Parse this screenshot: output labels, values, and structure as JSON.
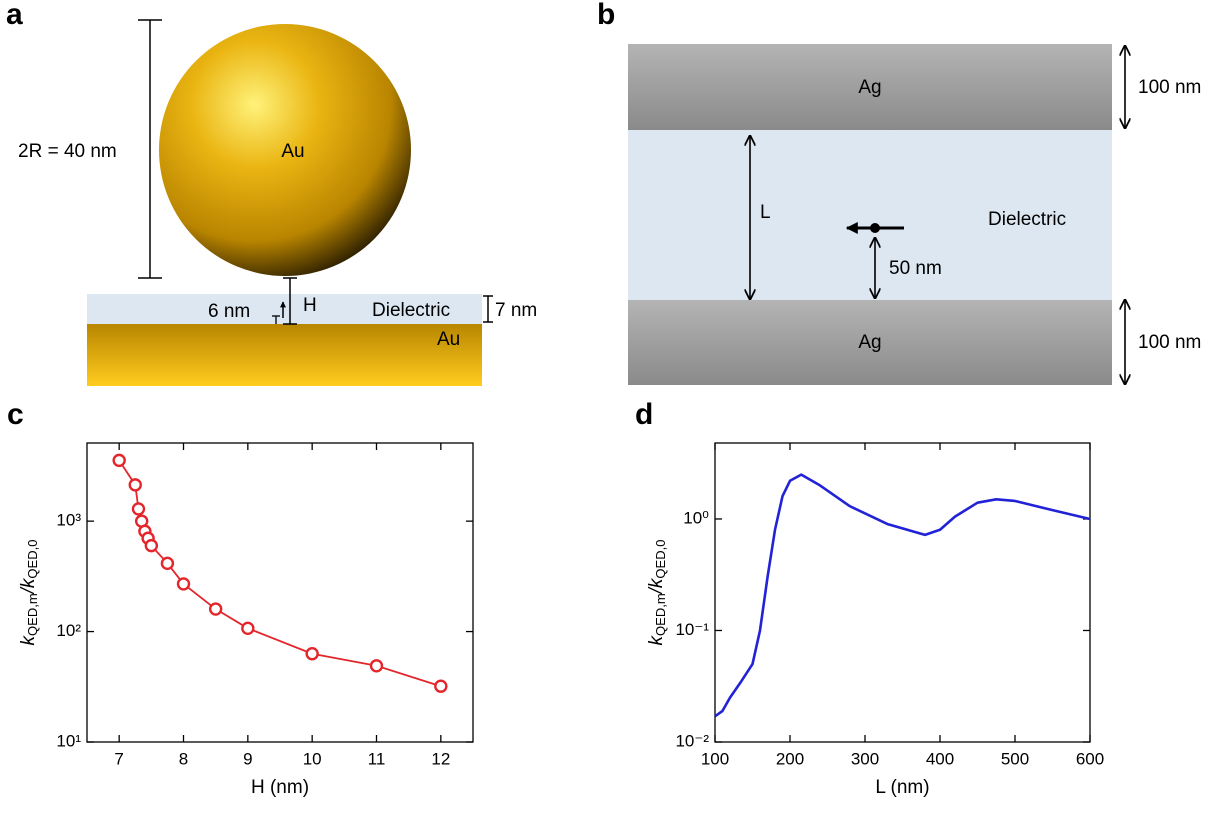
{
  "panel_a": {
    "letter": "a",
    "diameter_label": "2R = 40 nm",
    "sphere_label": "Au",
    "gap_label": "6 nm",
    "height_label": "H",
    "layer_label": "Dielectric",
    "layer_thickness_label": "7 nm",
    "substrate_label": "Au"
  },
  "panel_b": {
    "letter": "b",
    "top_label": "Ag",
    "top_thickness_label": "100 nm",
    "gap_label": "L",
    "layer_label": "Dielectric",
    "dipole_height_label": "50 nm",
    "bottom_label": "Ag",
    "bottom_thickness_label": "100 nm"
  },
  "chart_data": [
    {
      "type": "line",
      "panel": "c",
      "markers": true,
      "color": "#e3262b",
      "xlabel": "H (nm)",
      "ylabel": [
        "k",
        "QED,m",
        "/k",
        "QED,0"
      ],
      "x": [
        7,
        7.25,
        7.3,
        7.35,
        7.4,
        7.45,
        7.5,
        7.75,
        8,
        8.5,
        9,
        10,
        11,
        12
      ],
      "values": [
        3550,
        2130,
        1290,
        1000,
        810,
        700,
        600,
        415,
        270,
        160,
        107,
        63,
        49,
        32
      ],
      "xlim": [
        6.5,
        12.5
      ],
      "xticks": [
        7,
        8,
        9,
        10,
        11,
        12
      ],
      "log_y": true,
      "ylim": [
        10,
        5100
      ],
      "yticks": [
        {
          "value": 10,
          "label": "10¹"
        },
        {
          "value": 100,
          "label": "10²"
        },
        {
          "value": 1000,
          "label": "10³"
        }
      ]
    },
    {
      "type": "line",
      "panel": "d",
      "markers": false,
      "color": "#2222d6",
      "xlabel": "L (nm)",
      "ylabel": [
        "k",
        "QED,m",
        "/k",
        "QED,0"
      ],
      "x": [
        100,
        110,
        120,
        135,
        150,
        160,
        170,
        180,
        190,
        200,
        215,
        240,
        280,
        330,
        380,
        400,
        420,
        450,
        475,
        500,
        550,
        600
      ],
      "values": [
        0.017,
        0.019,
        0.025,
        0.035,
        0.05,
        0.1,
        0.3,
        0.8,
        1.6,
        2.2,
        2.5,
        2.0,
        1.3,
        0.9,
        0.72,
        0.8,
        1.05,
        1.4,
        1.5,
        1.45,
        1.2,
        1.0
      ],
      "xlim": [
        100,
        600
      ],
      "xticks": [
        100,
        200,
        300,
        400,
        500,
        600
      ],
      "log_y": true,
      "ylim": [
        0.01,
        4.8
      ],
      "yticks": [
        {
          "value": 0.01,
          "label": "10⁻²"
        },
        {
          "value": 0.1,
          "label": "10⁻¹"
        },
        {
          "value": 1,
          "label": "10⁰"
        }
      ]
    }
  ]
}
